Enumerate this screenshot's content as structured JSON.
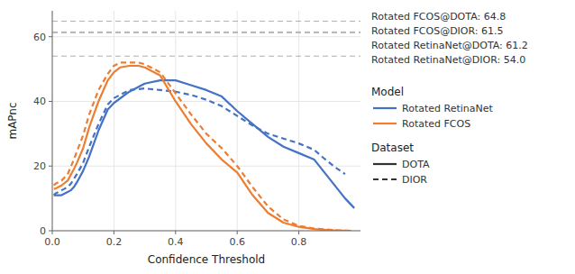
{
  "chart_data": {
    "type": "line",
    "xlabel": "Confidence Threshold",
    "ylabel": "mAPnc",
    "xlim": [
      0.0,
      1.0
    ],
    "ylim": [
      0,
      68
    ],
    "xticks": [
      {
        "value": 0.0,
        "label": "0.0"
      },
      0.2,
      0.4,
      0.6,
      0.8
    ],
    "yticks": [
      0,
      20,
      40,
      60
    ],
    "grid": true,
    "reference_lines": {
      "values": [
        64.8,
        61.5,
        61.2,
        54.0
      ],
      "color": "#b0b0b0",
      "line_style": "dashed"
    },
    "annotations": [
      "Rotated FCOS@DOTA: 64.8",
      "Rotated FCOS@DIOR: 61.5",
      "Rotated RetinaNet@DOTA: 61.2",
      "Rotated RetinaNet@DIOR: 54.0"
    ],
    "legends": [
      {
        "title": "Model",
        "entries": [
          {
            "name": "Rotated RetinaNet",
            "color": "#4472C4",
            "line_style": "solid"
          },
          {
            "name": "Rotated FCOS",
            "color": "#ED7D31",
            "line_style": "solid"
          }
        ]
      },
      {
        "title": "Dataset",
        "entries": [
          {
            "name": "DOTA",
            "color": "#333333",
            "line_style": "solid"
          },
          {
            "name": "DIOR",
            "color": "#333333",
            "line_style": "dashed"
          }
        ]
      }
    ],
    "series": [
      {
        "color": "#4472C4",
        "line_style": "solid",
        "x": [
          0.005,
          0.01,
          0.02,
          0.03,
          0.04,
          0.05,
          0.06,
          0.07,
          0.08,
          0.1,
          0.12,
          0.15,
          0.18,
          0.2,
          0.25,
          0.3,
          0.35,
          0.4,
          0.45,
          0.5,
          0.55,
          0.6,
          0.65,
          0.7,
          0.75,
          0.8,
          0.85,
          0.9,
          0.95,
          0.98
        ],
        "values": [
          11.0,
          11.0,
          11.0,
          11.0,
          11.5,
          12.0,
          12.5,
          13.5,
          15.0,
          18.5,
          23.0,
          31.0,
          37.5,
          39.5,
          43.0,
          45.5,
          46.5,
          46.5,
          45.0,
          43.5,
          41.5,
          37.0,
          33.0,
          29.0,
          26.0,
          24.0,
          22.0,
          16.0,
          10.0,
          7.0
        ]
      },
      {
        "color": "#4472C4",
        "line_style": "dashed",
        "x": [
          0.005,
          0.01,
          0.02,
          0.03,
          0.04,
          0.05,
          0.06,
          0.07,
          0.08,
          0.1,
          0.12,
          0.15,
          0.18,
          0.2,
          0.25,
          0.3,
          0.35,
          0.4,
          0.45,
          0.5,
          0.55,
          0.6,
          0.65,
          0.7,
          0.75,
          0.8,
          0.85,
          0.88,
          0.92,
          0.95
        ],
        "values": [
          11.0,
          11.5,
          12.0,
          12.5,
          13.0,
          13.5,
          14.5,
          16.0,
          17.5,
          21.0,
          26.0,
          33.0,
          39.0,
          41.0,
          43.5,
          44.0,
          43.5,
          43.0,
          42.0,
          40.5,
          38.5,
          35.5,
          32.5,
          30.0,
          28.5,
          27.0,
          25.0,
          22.5,
          19.5,
          17.5
        ]
      },
      {
        "color": "#ED7D31",
        "line_style": "solid",
        "x": [
          0.005,
          0.01,
          0.02,
          0.03,
          0.05,
          0.07,
          0.08,
          0.1,
          0.12,
          0.15,
          0.18,
          0.2,
          0.22,
          0.25,
          0.28,
          0.3,
          0.35,
          0.4,
          0.45,
          0.5,
          0.55,
          0.6,
          0.65,
          0.7,
          0.75,
          0.8,
          0.85,
          0.9,
          0.93,
          0.95,
          0.97
        ],
        "values": [
          13.0,
          13.0,
          13.5,
          14.0,
          15.5,
          19.0,
          21.0,
          25.5,
          32.0,
          40.0,
          46.5,
          49.0,
          50.5,
          51.0,
          51.0,
          50.5,
          48.0,
          40.0,
          33.0,
          27.0,
          22.0,
          18.0,
          11.0,
          5.5,
          2.5,
          1.2,
          0.5,
          0.15,
          0.05,
          0.02,
          0.0
        ]
      },
      {
        "color": "#ED7D31",
        "line_style": "dashed",
        "x": [
          0.005,
          0.01,
          0.02,
          0.03,
          0.05,
          0.07,
          0.08,
          0.1,
          0.12,
          0.15,
          0.18,
          0.2,
          0.22,
          0.25,
          0.28,
          0.3,
          0.35,
          0.4,
          0.45,
          0.5,
          0.55,
          0.6,
          0.65,
          0.7,
          0.75,
          0.8,
          0.85,
          0.9,
          0.93,
          0.95,
          0.97
        ],
        "values": [
          14.0,
          14.5,
          15.0,
          15.5,
          17.5,
          22.0,
          24.5,
          29.5,
          36.0,
          43.5,
          48.5,
          51.0,
          52.0,
          52.0,
          52.0,
          51.5,
          49.0,
          42.5,
          36.0,
          30.0,
          25.5,
          20.0,
          13.5,
          7.5,
          3.5,
          1.5,
          0.7,
          0.3,
          0.1,
          0.05,
          0.0
        ]
      }
    ]
  }
}
